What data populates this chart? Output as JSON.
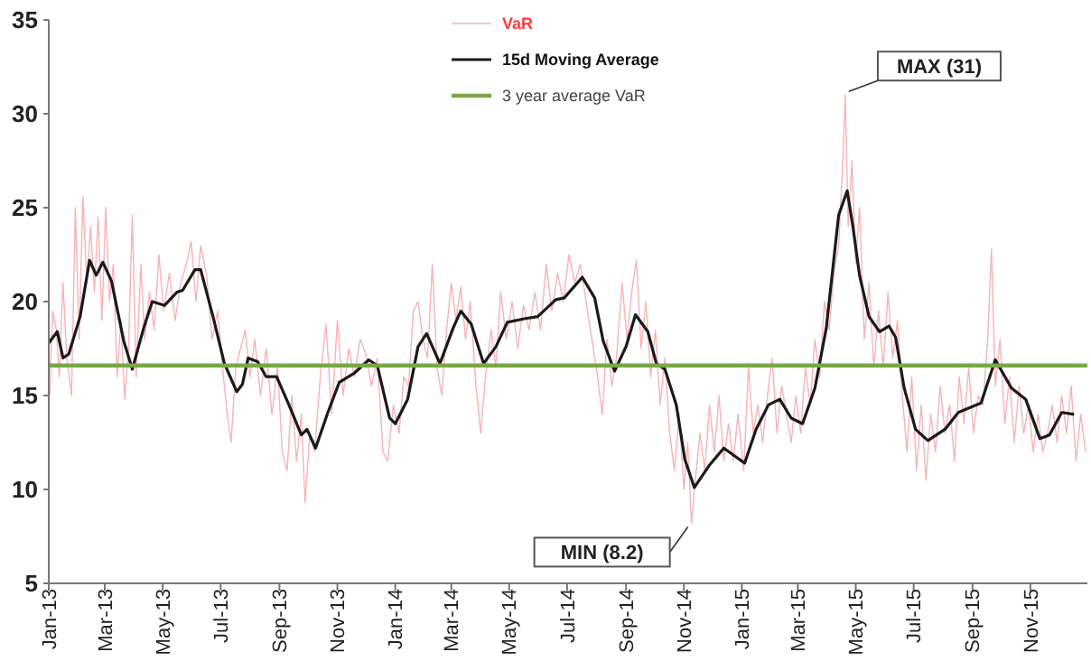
{
  "chart_data": {
    "type": "line",
    "xlim": [
      "2013-01-01",
      "2015-12-31"
    ],
    "ylim": [
      5,
      35
    ],
    "yticks": [
      5,
      10,
      15,
      20,
      25,
      30,
      35
    ],
    "xticks": [
      {
        "value": "2013-01-01",
        "label": "Jan-13"
      },
      {
        "value": "2013-03-01",
        "label": "Mar-13"
      },
      {
        "value": "2013-05-01",
        "label": "May-13"
      },
      {
        "value": "2013-07-01",
        "label": "Jul-13"
      },
      {
        "value": "2013-09-01",
        "label": "Sep-13"
      },
      {
        "value": "2013-11-01",
        "label": "Nov-13"
      },
      {
        "value": "2014-01-01",
        "label": "Jan-14"
      },
      {
        "value": "2014-03-01",
        "label": "Mar-14"
      },
      {
        "value": "2014-05-01",
        "label": "May-14"
      },
      {
        "value": "2014-07-01",
        "label": "Jul-14"
      },
      {
        "value": "2014-09-01",
        "label": "Sep-14"
      },
      {
        "value": "2014-11-01",
        "label": "Nov-14"
      },
      {
        "value": "2015-01-01",
        "label": "Jan-15"
      },
      {
        "value": "2015-03-01",
        "label": "Mar-15"
      },
      {
        "value": "2015-05-01",
        "label": "May-15"
      },
      {
        "value": "2015-07-01",
        "label": "Jul-15"
      },
      {
        "value": "2015-09-01",
        "label": "Sep-15"
      },
      {
        "value": "2015-11-01",
        "label": "Nov-15"
      }
    ],
    "grid": false,
    "legend": "top",
    "marker": "none",
    "line_style": "solid",
    "annotations": [
      {
        "text": "MAX (31)",
        "x": "2015-04-20",
        "y": 31
      },
      {
        "text": "MIN (8.2)",
        "x": "2014-11-09",
        "y": 8.2
      }
    ],
    "series": [
      {
        "name": "VaR",
        "color": "#f7b3b3",
        "x": [
          "2013-01-02",
          "2013-01-05",
          "2013-01-09",
          "2013-01-12",
          "2013-01-16",
          "2013-01-20",
          "2013-01-25",
          "2013-01-29",
          "2013-02-02",
          "2013-02-06",
          "2013-02-10",
          "2013-02-14",
          "2013-02-18",
          "2013-02-22",
          "2013-02-26",
          "2013-03-02",
          "2013-03-06",
          "2013-03-10",
          "2013-03-14",
          "2013-03-18",
          "2013-03-22",
          "2013-03-26",
          "2013-03-30",
          "2013-04-03",
          "2013-04-08",
          "2013-04-12",
          "2013-04-17",
          "2013-04-22",
          "2013-04-27",
          "2013-05-02",
          "2013-05-08",
          "2013-05-14",
          "2013-05-20",
          "2013-05-26",
          "2013-05-31",
          "2013-06-05",
          "2013-06-10",
          "2013-06-16",
          "2013-06-22",
          "2013-06-28",
          "2013-07-03",
          "2013-07-08",
          "2013-07-12",
          "2013-07-17",
          "2013-07-22",
          "2013-07-27",
          "2013-08-01",
          "2013-08-06",
          "2013-08-12",
          "2013-08-18",
          "2013-08-24",
          "2013-08-30",
          "2013-09-04",
          "2013-09-09",
          "2013-09-14",
          "2013-09-19",
          "2013-09-24",
          "2013-09-28",
          "2013-10-03",
          "2013-10-08",
          "2013-10-14",
          "2013-10-20",
          "2013-10-26",
          "2013-11-01",
          "2013-11-07",
          "2013-11-13",
          "2013-11-19",
          "2013-11-25",
          "2013-12-01",
          "2013-12-07",
          "2013-12-13",
          "2013-12-19",
          "2013-12-24",
          "2013-12-30",
          "2014-01-05",
          "2014-01-10",
          "2014-01-15",
          "2014-01-20",
          "2014-01-25",
          "2014-01-30",
          "2014-02-04",
          "2014-02-09",
          "2014-02-14",
          "2014-02-19",
          "2014-02-24",
          "2014-03-01",
          "2014-03-06",
          "2014-03-11",
          "2014-03-16",
          "2014-03-21",
          "2014-03-27",
          "2014-04-01",
          "2014-04-06",
          "2014-04-12",
          "2014-04-17",
          "2014-04-22",
          "2014-04-28",
          "2014-05-04",
          "2014-05-10",
          "2014-05-16",
          "2014-05-22",
          "2014-05-28",
          "2014-06-03",
          "2014-06-09",
          "2014-06-15",
          "2014-06-21",
          "2014-06-27",
          "2014-07-03",
          "2014-07-09",
          "2014-07-15",
          "2014-07-21",
          "2014-07-27",
          "2014-08-02",
          "2014-08-07",
          "2014-08-12",
          "2014-08-17",
          "2014-08-22",
          "2014-08-28",
          "2014-09-02",
          "2014-09-07",
          "2014-09-12",
          "2014-09-17",
          "2014-09-22",
          "2014-09-27",
          "2014-10-02",
          "2014-10-07",
          "2014-10-12",
          "2014-10-17",
          "2014-10-22",
          "2014-10-27",
          "2014-11-01",
          "2014-11-05",
          "2014-11-09",
          "2014-11-13",
          "2014-11-18",
          "2014-11-23",
          "2014-11-28",
          "2014-12-03",
          "2014-12-08",
          "2014-12-13",
          "2014-12-18",
          "2014-12-23",
          "2014-12-28",
          "2015-01-03",
          "2015-01-08",
          "2015-01-13",
          "2015-01-18",
          "2015-01-23",
          "2015-01-28",
          "2015-02-02",
          "2015-02-07",
          "2015-02-12",
          "2015-02-17",
          "2015-02-22",
          "2015-02-27",
          "2015-03-04",
          "2015-03-09",
          "2015-03-14",
          "2015-03-19",
          "2015-03-24",
          "2015-03-29",
          "2015-04-03",
          "2015-04-08",
          "2015-04-13",
          "2015-04-17",
          "2015-04-20",
          "2015-04-23",
          "2015-04-27",
          "2015-05-01",
          "2015-05-05",
          "2015-05-10",
          "2015-05-15",
          "2015-05-20",
          "2015-05-25",
          "2015-05-30",
          "2015-06-04",
          "2015-06-09",
          "2015-06-14",
          "2015-06-19",
          "2015-06-24",
          "2015-06-29",
          "2015-07-04",
          "2015-07-09",
          "2015-07-14",
          "2015-07-19",
          "2015-07-24",
          "2015-07-29",
          "2015-08-03",
          "2015-08-08",
          "2015-08-13",
          "2015-08-18",
          "2015-08-23",
          "2015-08-28",
          "2015-09-02",
          "2015-09-07",
          "2015-09-12",
          "2015-09-17",
          "2015-09-21",
          "2015-09-25",
          "2015-09-30",
          "2015-10-05",
          "2015-10-10",
          "2015-10-15",
          "2015-10-20",
          "2015-10-25",
          "2015-10-30",
          "2015-11-04",
          "2015-11-09",
          "2015-11-14",
          "2015-11-19",
          "2015-11-24",
          "2015-11-29",
          "2015-12-04",
          "2015-12-09",
          "2015-12-14",
          "2015-12-19",
          "2015-12-24",
          "2015-12-29"
        ],
        "values": [
          15.0,
          19.5,
          18.5,
          16.0,
          21.0,
          17.0,
          15.0,
          25.0,
          18.0,
          25.6,
          21.0,
          24.0,
          20.5,
          24.5,
          19.0,
          25.0,
          20.0,
          22.0,
          16.0,
          19.0,
          14.8,
          17.5,
          24.6,
          16.0,
          22.0,
          18.0,
          20.5,
          18.5,
          22.5,
          19.5,
          21.5,
          19.0,
          21.0,
          22.0,
          23.2,
          20.0,
          23.0,
          21.5,
          18.0,
          19.5,
          16.5,
          14.0,
          12.5,
          16.5,
          17.5,
          18.5,
          16.0,
          18.0,
          15.0,
          17.5,
          14.0,
          16.5,
          12.0,
          11.0,
          15.0,
          11.5,
          14.0,
          9.3,
          13.0,
          12.0,
          16.0,
          18.8,
          14.0,
          19.0,
          15.0,
          17.5,
          16.0,
          18.0,
          17.2,
          15.5,
          17.0,
          12.0,
          11.5,
          14.5,
          13.0,
          16.0,
          15.5,
          19.5,
          20.0,
          18.0,
          17.0,
          22.0,
          16.5,
          15.0,
          18.5,
          21.0,
          19.0,
          20.8,
          18.0,
          20.0,
          15.5,
          13.0,
          16.0,
          18.5,
          16.5,
          20.5,
          18.0,
          20.0,
          17.5,
          19.8,
          18.5,
          20.5,
          18.5,
          22.0,
          19.5,
          21.5,
          20.0,
          22.5,
          21.0,
          22.0,
          20.0,
          18.0,
          16.0,
          14.0,
          18.0,
          15.5,
          17.0,
          21.0,
          18.0,
          20.5,
          22.2,
          17.5,
          20.0,
          16.0,
          18.5,
          14.5,
          17.0,
          13.0,
          11.0,
          14.0,
          10.0,
          12.5,
          8.2,
          10.5,
          13.0,
          11.0,
          14.5,
          12.0,
          15.0,
          11.5,
          13.5,
          11.5,
          14.0,
          11.0,
          16.5,
          13.0,
          14.5,
          12.5,
          15.0,
          17.0,
          13.0,
          15.5,
          14.0,
          12.5,
          15.0,
          13.0,
          16.5,
          14.5,
          18.0,
          16.0,
          20.0,
          18.5,
          21.5,
          23.0,
          27.0,
          31.0,
          24.0,
          27.5,
          22.0,
          25.0,
          18.0,
          21.0,
          16.5,
          19.5,
          16.5,
          20.5,
          17.0,
          19.0,
          15.0,
          12.0,
          16.0,
          11.0,
          14.5,
          10.5,
          14.0,
          12.0,
          15.5,
          13.0,
          14.5,
          11.5,
          16.0,
          13.5,
          16.5,
          13.0,
          15.0,
          14.5,
          18.0,
          22.8,
          15.5,
          18.0,
          13.5,
          16.0,
          12.5,
          15.5,
          13.0,
          14.5,
          12.0,
          14.0,
          12.0,
          13.0,
          14.5,
          12.5,
          15.0,
          13.0,
          15.5,
          11.5,
          14.0,
          12.0
        ]
      },
      {
        "name": "15d Moving Average",
        "color": "#1a1a1a",
        "x": [
          "2013-01-01",
          "2013-01-10",
          "2013-01-16",
          "2013-01-22",
          "2013-02-03",
          "2013-02-13",
          "2013-02-20",
          "2013-02-27",
          "2013-03-08",
          "2013-03-21",
          "2013-03-30",
          "2013-04-11",
          "2013-04-20",
          "2013-05-03",
          "2013-05-16",
          "2013-05-22",
          "2013-06-04",
          "2013-06-10",
          "2013-06-23",
          "2013-07-05",
          "2013-07-18",
          "2013-07-24",
          "2013-07-30",
          "2013-08-09",
          "2013-08-18",
          "2013-08-29",
          "2013-09-11",
          "2013-09-24",
          "2013-09-30",
          "2013-10-09",
          "2013-10-22",
          "2013-11-03",
          "2013-11-19",
          "2013-12-04",
          "2013-12-13",
          "2013-12-26",
          "2014-01-01",
          "2014-01-14",
          "2014-01-25",
          "2014-02-03",
          "2014-02-17",
          "2014-03-03",
          "2014-03-11",
          "2014-03-22",
          "2014-04-04",
          "2014-04-17",
          "2014-04-29",
          "2014-05-18",
          "2014-05-31",
          "2014-06-19",
          "2014-06-28",
          "2014-07-17",
          "2014-07-30",
          "2014-08-08",
          "2014-08-20",
          "2014-09-01",
          "2014-09-11",
          "2014-09-24",
          "2014-10-03",
          "2014-10-12",
          "2014-10-24",
          "2014-11-02",
          "2014-11-12",
          "2014-11-28",
          "2014-12-13",
          "2015-01-04",
          "2015-01-16",
          "2015-01-29",
          "2015-02-10",
          "2015-02-22",
          "2015-03-06",
          "2015-03-19",
          "2015-03-31",
          "2015-04-13",
          "2015-04-22",
          "2015-04-28",
          "2015-05-05",
          "2015-05-15",
          "2015-05-26",
          "2015-06-05",
          "2015-06-12",
          "2015-06-21",
          "2015-07-03",
          "2015-07-16",
          "2015-08-03",
          "2015-08-17",
          "2015-09-10",
          "2015-09-25",
          "2015-10-12",
          "2015-10-27",
          "2015-11-11",
          "2015-11-21",
          "2015-12-04",
          "2015-12-17"
        ],
        "values": [
          17.8,
          18.4,
          17.0,
          17.2,
          19.2,
          22.2,
          21.4,
          22.1,
          21.1,
          17.9,
          16.4,
          18.6,
          20.0,
          19.8,
          20.5,
          20.6,
          21.7,
          21.7,
          19.2,
          16.7,
          15.2,
          15.6,
          17.0,
          16.8,
          16.0,
          16.0,
          14.5,
          12.9,
          13.2,
          12.2,
          14.1,
          15.7,
          16.2,
          16.9,
          16.6,
          13.8,
          13.5,
          14.8,
          17.6,
          18.3,
          16.7,
          18.6,
          19.5,
          18.8,
          16.7,
          17.6,
          18.9,
          19.1,
          19.2,
          20.1,
          20.2,
          21.3,
          20.2,
          17.9,
          16.3,
          17.6,
          19.3,
          18.4,
          16.7,
          16.4,
          14.5,
          11.6,
          10.1,
          11.3,
          12.2,
          11.4,
          13.2,
          14.5,
          14.8,
          13.8,
          13.5,
          15.4,
          18.6,
          24.6,
          25.9,
          24.0,
          21.4,
          19.2,
          18.4,
          18.7,
          18.1,
          15.4,
          13.2,
          12.6,
          13.2,
          14.1,
          14.6,
          16.9,
          15.4,
          14.8,
          12.7,
          12.9,
          14.1,
          14.0
        ]
      },
      {
        "name": "3 year average VaR",
        "color": "#77a846",
        "x": [
          "2013-01-01",
          "2015-12-31"
        ],
        "values": [
          16.6,
          16.6
        ]
      }
    ]
  }
}
